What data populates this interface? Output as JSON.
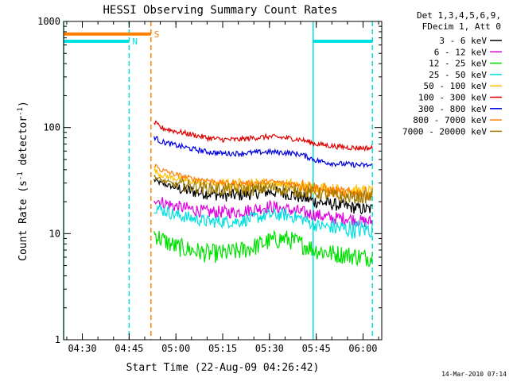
{
  "chart_data": {
    "type": "line",
    "title": "HESSI Observing Summary Count Rates",
    "xlabel": "Start Time (22-Aug-09 04:26:42)",
    "ylabel_main": "Count Rate (s",
    "ylabel_sup1": "-1",
    "ylabel_mid": " detector",
    "ylabel_sup2": "-1",
    "ylabel_end": ")",
    "y_scale": "log",
    "ylim": [
      1,
      1000
    ],
    "xlim": [
      "04:24",
      "06:06"
    ],
    "x_ticks": [
      {
        "t": "04:30",
        "label": "04:30"
      },
      {
        "t": "04:45",
        "label": "04:45"
      },
      {
        "t": "05:00",
        "label": "05:00"
      },
      {
        "t": "05:15",
        "label": "05:15"
      },
      {
        "t": "05:30",
        "label": "05:30"
      },
      {
        "t": "05:45",
        "label": "05:45"
      },
      {
        "t": "06:00",
        "label": "06:00"
      }
    ],
    "y_ticks": [
      {
        "v": 1,
        "label": "1"
      },
      {
        "v": 10,
        "label": "10"
      },
      {
        "v": 100,
        "label": "100"
      },
      {
        "v": 1000,
        "label": "1000"
      }
    ],
    "legend_header": [
      "Det 1,3,4,5,6,9,",
      "FDecim 1, Att 0"
    ],
    "legend_position": "right",
    "timestamp": "14-Mar-2010 07:14",
    "flags": [
      {
        "label": "N",
        "color": "#00e0e0",
        "y": 650,
        "segments": [
          [
            "04:24",
            "04:45"
          ],
          [
            "05:44",
            "06:03"
          ]
        ],
        "label_at": "04:45"
      },
      {
        "label": "S",
        "color": "#ff7f00",
        "y": 760,
        "segments": [
          [
            "04:24",
            "04:52"
          ]
        ],
        "label_at": "04:52"
      }
    ],
    "markers": [
      {
        "t": "04:45",
        "color": "#00e0e0",
        "style": "dashed"
      },
      {
        "t": "04:52",
        "color": "#ff7f00",
        "style": "dashed"
      },
      {
        "t": "05:44",
        "color": "#00e0e0",
        "style": "solid"
      },
      {
        "t": "06:03",
        "color": "#00e0e0",
        "style": "dashed"
      },
      {
        "t": "04:24",
        "color": "#00e0e0",
        "style": "solid"
      }
    ],
    "x_times": [
      "04:53",
      "04:55",
      "05:00",
      "05:05",
      "05:10",
      "05:15",
      "05:20",
      "05:25",
      "05:30",
      "05:35",
      "05:40",
      "05:45",
      "05:50",
      "05:55",
      "06:00",
      "06:03"
    ],
    "series": [
      {
        "name": "3 - 6 keV",
        "color": "#000000",
        "values": [
          32,
          30,
          27,
          25,
          24,
          23,
          23,
          24,
          25,
          24,
          22,
          20,
          19,
          18,
          17,
          17
        ]
      },
      {
        "name": "6 - 12 keV",
        "color": "#e000e0",
        "values": [
          22,
          20,
          18,
          17,
          16,
          16,
          16,
          17,
          18,
          17,
          16,
          15,
          14,
          14,
          13,
          13
        ]
      },
      {
        "name": "12 - 25 keV",
        "color": "#00e000",
        "values": [
          10,
          9,
          7.5,
          7,
          6.5,
          6.5,
          6.8,
          7.5,
          8.5,
          9,
          8,
          7,
          6.5,
          6.3,
          6,
          6
        ]
      },
      {
        "name": "25 - 50 keV",
        "color": "#00e0e0",
        "values": [
          18,
          17,
          15,
          14,
          13,
          13,
          13,
          14,
          15,
          15,
          14,
          12,
          11.5,
          11,
          11,
          11
        ]
      },
      {
        "name": "50 - 100 keV",
        "color": "#ffc000",
        "values": [
          40,
          36,
          33,
          31,
          30,
          29,
          29,
          29,
          30,
          29,
          28,
          27,
          26,
          25,
          25,
          25
        ]
      },
      {
        "name": "100 - 300 keV",
        "color": "#e00000",
        "values": [
          112,
          100,
          92,
          86,
          80,
          77,
          77,
          80,
          82,
          80,
          77,
          70,
          67,
          65,
          64,
          64
        ]
      },
      {
        "name": "300 - 800 keV",
        "color": "#0000e0",
        "values": [
          82,
          74,
          68,
          63,
          59,
          57,
          57,
          58,
          59,
          58,
          56,
          49,
          46,
          45,
          44,
          44
        ]
      },
      {
        "name": "800 - 7000 keV",
        "color": "#ff7f00",
        "values": [
          45,
          40,
          36,
          33,
          32,
          30,
          30,
          30,
          31,
          30,
          29,
          27,
          25,
          24,
          24,
          24
        ]
      },
      {
        "name": "7000 - 20000 keV",
        "color": "#a07800",
        "values": [
          35,
          32,
          29,
          28,
          27,
          26,
          26,
          26,
          27,
          26,
          25,
          24,
          23,
          22,
          22,
          22
        ]
      }
    ]
  }
}
